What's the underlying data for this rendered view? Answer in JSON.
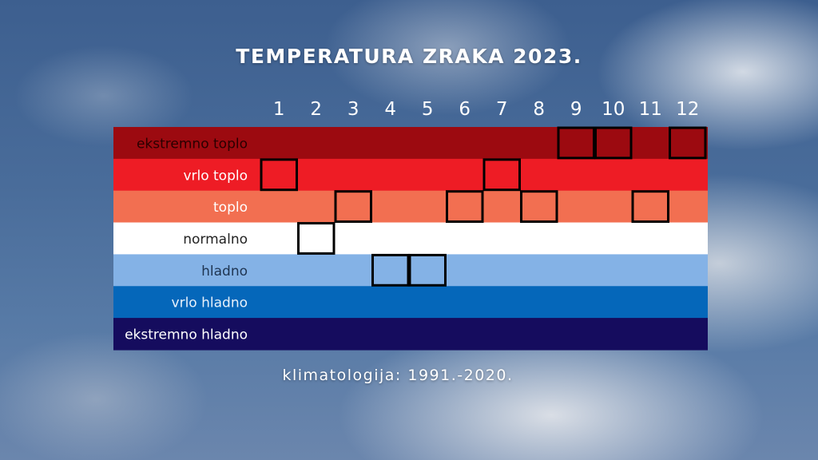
{
  "title": "TEMPERATURA ZRAKA 2023.",
  "footnote": "klimatologija: 1991.-2020.",
  "chart_data": {
    "type": "heatmap",
    "title": "TEMPERATURA ZRAKA 2023.",
    "categories": [
      "1",
      "2",
      "3",
      "4",
      "5",
      "6",
      "7",
      "8",
      "9",
      "10",
      "11",
      "12"
    ],
    "classes": [
      {
        "label": "ekstremno toplo",
        "color": "#9c0a10",
        "text_color": "#2a0000"
      },
      {
        "label": "vrlo toplo",
        "color": "#ee1c25",
        "text_color": "#ffffff"
      },
      {
        "label": "toplo",
        "color": "#f26f51",
        "text_color": "#ffffff"
      },
      {
        "label": "normalno",
        "color": "#ffffff",
        "text_color": "#222222"
      },
      {
        "label": "hladno",
        "color": "#84b2e6",
        "text_color": "#1f3552"
      },
      {
        "label": "vrlo hladno",
        "color": "#0567ba",
        "text_color": "#e8f1fb"
      },
      {
        "label": "ekstremno hladno",
        "color": "#150c5e",
        "text_color": "#ffffff"
      }
    ],
    "values": [
      "vrlo toplo",
      "normalno",
      "toplo",
      "hladno",
      "hladno",
      "toplo",
      "vrlo toplo",
      "toplo",
      "ekstremno toplo",
      "ekstremno toplo",
      "toplo",
      "ekstremno toplo"
    ],
    "note": "klimatologija: 1991.-2020."
  }
}
